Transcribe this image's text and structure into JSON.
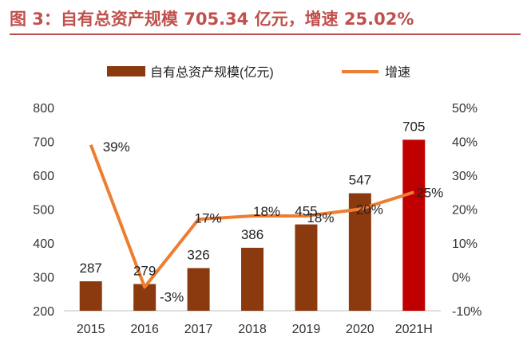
{
  "header": {
    "title": "图 3：自有总资产规模 705.34 亿元，增速 25.02%"
  },
  "colors": {
    "bar": "#8b3a0f",
    "bar_highlight": "#c00000",
    "line": "#ed7d31",
    "title": "#c0504d"
  },
  "chart_data": {
    "type": "bar+line",
    "title": "图 3：自有总资产规模 705.34 亿元，增速 25.02%",
    "categories": [
      "2015",
      "2016",
      "2017",
      "2018",
      "2019",
      "2020",
      "2021H"
    ],
    "series": [
      {
        "name": "自有总资产规模(亿元)",
        "type": "bar",
        "axis": "left",
        "values": [
          287,
          279,
          326,
          386,
          455,
          547,
          705
        ],
        "labels": [
          "287",
          "279",
          "326",
          "386",
          "455",
          "547",
          "705"
        ],
        "highlight_index": 6
      },
      {
        "name": "增速",
        "type": "line",
        "axis": "right",
        "values": [
          39,
          -3,
          17,
          18,
          18,
          20,
          25
        ],
        "labels": [
          "39%",
          "-3%",
          "17%",
          "18%",
          "18%",
          "20%",
          "25%"
        ]
      }
    ],
    "y_left": {
      "min": 200,
      "max": 800,
      "ticks": [
        200,
        300,
        400,
        500,
        600,
        700,
        800
      ],
      "tick_labels": [
        "200",
        "300",
        "400",
        "500",
        "600",
        "700",
        "800"
      ]
    },
    "y_right": {
      "min": -10,
      "max": 50,
      "ticks": [
        -10,
        0,
        10,
        20,
        30,
        40,
        50
      ],
      "tick_labels": [
        "-10%",
        "0%",
        "10%",
        "20%",
        "30%",
        "40%",
        "50%"
      ]
    },
    "legend": {
      "placement": "top-center",
      "items": [
        "自有总资产规模(亿元)",
        "增速"
      ]
    },
    "grid": false
  }
}
